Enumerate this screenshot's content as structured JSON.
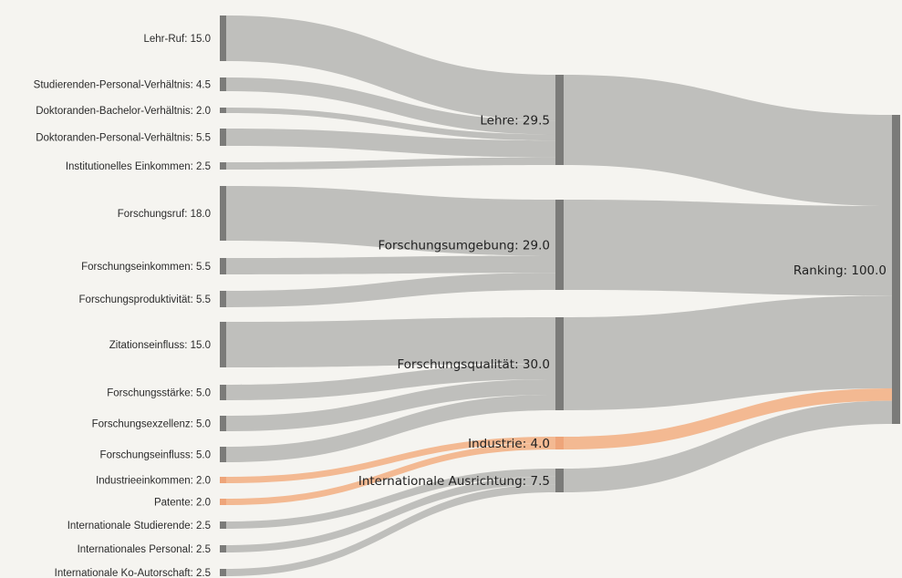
{
  "chart_data": {
    "type": "sankey",
    "colors": {
      "link": "#b9b9b6",
      "link_highlight": "#f2b58c",
      "node": "#7b7b79",
      "node_highlight": "#eea57a",
      "background": "#f5f4f0"
    },
    "sources": [
      {
        "id": "lehr_ruf",
        "label": "Lehr-Ruf: 15.0",
        "value": 15.0,
        "target": "lehre"
      },
      {
        "id": "stud_pers",
        "label": "Studierenden-Personal-Verhältnis: 4.5",
        "value": 4.5,
        "target": "lehre"
      },
      {
        "id": "dok_bach",
        "label": "Doktoranden-Bachelor-Verhältnis: 2.0",
        "value": 2.0,
        "target": "lehre"
      },
      {
        "id": "dok_pers",
        "label": "Doktoranden-Personal-Verhältnis: 5.5",
        "value": 5.5,
        "target": "lehre"
      },
      {
        "id": "inst_eink",
        "label": "Institutionelles Einkommen: 2.5",
        "value": 2.5,
        "target": "lehre"
      },
      {
        "id": "f_ruf",
        "label": "Forschungsruf: 18.0",
        "value": 18.0,
        "target": "fumg"
      },
      {
        "id": "f_eink",
        "label": "Forschungseinkommen: 5.5",
        "value": 5.5,
        "target": "fumg"
      },
      {
        "id": "f_prod",
        "label": "Forschungsproduktivität: 5.5",
        "value": 5.5,
        "target": "fumg"
      },
      {
        "id": "zit",
        "label": "Zitationseinfluss: 15.0",
        "value": 15.0,
        "target": "fqual"
      },
      {
        "id": "f_staerke",
        "label": "Forschungsstärke: 5.0",
        "value": 5.0,
        "target": "fqual"
      },
      {
        "id": "f_exz",
        "label": "Forschungsexzellenz: 5.0",
        "value": 5.0,
        "target": "fqual"
      },
      {
        "id": "f_einfl",
        "label": "Forschungseinfluss: 5.0",
        "value": 5.0,
        "target": "fqual"
      },
      {
        "id": "ind_eink",
        "label": "Industrieeinkommen: 2.0",
        "value": 2.0,
        "target": "ind",
        "highlight": true
      },
      {
        "id": "patente",
        "label": "Patente: 2.0",
        "value": 2.0,
        "target": "ind",
        "highlight": true
      },
      {
        "id": "int_stud",
        "label": "Internationale Studierende: 2.5",
        "value": 2.5,
        "target": "intl"
      },
      {
        "id": "int_pers",
        "label": "Internationales Personal: 2.5",
        "value": 2.5,
        "target": "intl"
      },
      {
        "id": "int_ko",
        "label": "Internationale Ko-Autorschaft: 2.5",
        "value": 2.5,
        "target": "intl"
      }
    ],
    "middle": [
      {
        "id": "lehre",
        "label": "Lehre: 29.5",
        "value": 29.5
      },
      {
        "id": "fumg",
        "label": "Forschungsumgebung: 29.0",
        "value": 29.0
      },
      {
        "id": "fqual",
        "label": "Forschungsqualität: 30.0",
        "value": 30.0
      },
      {
        "id": "ind",
        "label": "Industrie: 4.0",
        "value": 4.0,
        "highlight": true
      },
      {
        "id": "intl",
        "label": "Internationale Ausrichtung: 7.5",
        "value": 7.5
      }
    ],
    "final": {
      "id": "ranking",
      "label": "Ranking: 100.0",
      "value": 100.0
    }
  }
}
